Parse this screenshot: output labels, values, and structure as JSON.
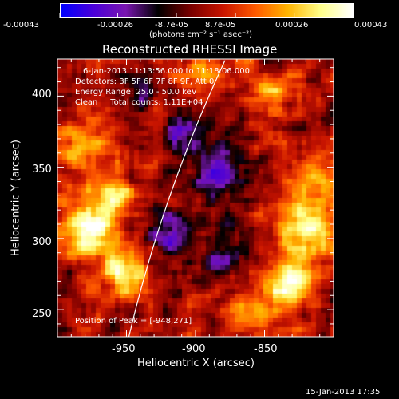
{
  "colorbar": {
    "tick_labels": [
      "-0.00043",
      "-0.00026",
      "-8.7e-05",
      "8.7e-05",
      "0.00026",
      "0.00043"
    ],
    "range": [
      -0.00043,
      0.00043
    ],
    "unit_label": "(photons cm⁻² s⁻¹ asec⁻²)",
    "gradient_colors": [
      "#0000ff",
      "#4b00d8",
      "#7a16b0",
      "#000000",
      "#7a0000",
      "#c81400",
      "#ff5a00",
      "#ffb400",
      "#ffff88",
      "#ffffff"
    ]
  },
  "plot": {
    "title": "Reconstructed RHESSI Image",
    "xlabel": "Heliocentric X (arcsec)",
    "ylabel": "Heliocentric Y (arcsec)",
    "x_ticks": [
      "-950",
      "-900",
      "-850"
    ],
    "y_ticks": [
      "250",
      "300",
      "350",
      "400"
    ],
    "x_range": [
      -1000,
      -800
    ],
    "y_range": [
      231,
      426
    ],
    "info_lines": [
      "6-Jan-2013 11:13:56.000 to 11:18:06.000",
      "Detectors: 3F 5F 6F 7F 8F 9F, Att 0",
      "Energy Range: 25.0 - 50.0 keV",
      "Clean     Total counts: 1.11E+04"
    ],
    "peak_label": "Position of Peak = [-948,271]",
    "peak": [
      -948,
      271
    ],
    "limb_line_color": "#ffffff"
  },
  "footer": {
    "timestamp": "15-Jan-2013 17:35"
  }
}
